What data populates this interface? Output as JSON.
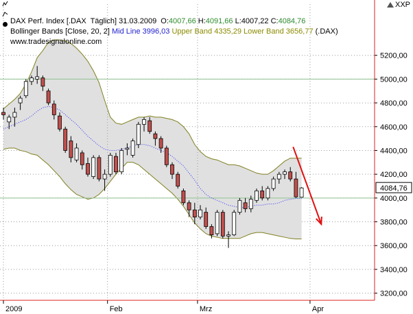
{
  "header": {
    "line1_prefix": "DAX Perf. Index [.DAX  Täglich] 31.03.2009  O:",
    "open": "4007,66",
    "high_label": " H:",
    "high": "4091,66",
    "low_label": " L:",
    "low": "4007,22",
    "close_label": " C:",
    "close": "4084,76",
    "line2_prefix": "Bollinger Bands [Close, 20, 2] ",
    "mid_label": "Mid Line 3996,03",
    "upper_label": " Upper Band 4335,29",
    "lower_label": " Lower Band 3656,77",
    "line2_suffix": " (.DAX)",
    "source": "www.tradesignalonline.com",
    "corner_label": "XXP"
  },
  "colors": {
    "up": "#ffffff",
    "down": "#c0504d",
    "band_fill": "#e0e0e0",
    "band_line": "#7f7f1f",
    "mid_line": "#2a2aff",
    "arrow": "#e01010",
    "open_color": "#2e8b2e",
    "high_color": "#2e8b2e",
    "mid_color": "#2222cc",
    "upper_color": "#8a8a00",
    "lower_color": "#8a8a00",
    "frame": "#e02020"
  },
  "chart_data": {
    "type": "candlestick",
    "y_ticks": [
      "5200,00",
      "5000,00",
      "4800,00",
      "4600,00",
      "4400,00",
      "4200,00",
      "4000,00",
      "3800,00",
      "3600,00",
      "3400,00",
      "3200,00"
    ],
    "y_tick_values": [
      5200,
      5000,
      4800,
      4600,
      4400,
      4200,
      4000,
      3800,
      3600,
      3400,
      3200
    ],
    "ylim": [
      3140,
      5400
    ],
    "x_labels": [
      "2009",
      "Feb",
      "Mrz",
      "Apr"
    ],
    "x_label_index": [
      0,
      18.5,
      34.5,
      54.5
    ],
    "last_value_label": "4084,76",
    "last_value": 4084.76,
    "candles": [
      {
        "o": 4720,
        "h": 4760,
        "l": 4660,
        "c": 4700
      },
      {
        "o": 4640,
        "h": 4700,
        "l": 4580,
        "c": 4680
      },
      {
        "o": 4680,
        "h": 4760,
        "l": 4600,
        "c": 4720
      },
      {
        "o": 4800,
        "h": 4860,
        "l": 4740,
        "c": 4840
      },
      {
        "o": 4860,
        "h": 5000,
        "l": 4840,
        "c": 4980
      },
      {
        "o": 4980,
        "h": 5030,
        "l": 4950,
        "c": 5010
      },
      {
        "o": 5000,
        "h": 5110,
        "l": 4960,
        "c": 5020
      },
      {
        "o": 5010,
        "h": 5030,
        "l": 4900,
        "c": 4940
      },
      {
        "o": 4900,
        "h": 4920,
        "l": 4780,
        "c": 4800
      },
      {
        "o": 4790,
        "h": 4820,
        "l": 4660,
        "c": 4700
      },
      {
        "o": 4690,
        "h": 4720,
        "l": 4560,
        "c": 4580
      },
      {
        "o": 4580,
        "h": 4600,
        "l": 4380,
        "c": 4400
      },
      {
        "o": 4480,
        "h": 4520,
        "l": 4300,
        "c": 4340
      },
      {
        "o": 4320,
        "h": 4460,
        "l": 4300,
        "c": 4420
      },
      {
        "o": 4380,
        "h": 4400,
        "l": 4240,
        "c": 4280
      },
      {
        "o": 4290,
        "h": 4340,
        "l": 4180,
        "c": 4200
      },
      {
        "o": 4180,
        "h": 4360,
        "l": 4160,
        "c": 4340
      },
      {
        "o": 4340,
        "h": 4360,
        "l": 4140,
        "c": 4160
      },
      {
        "o": 4160,
        "h": 4240,
        "l": 4060,
        "c": 4200
      },
      {
        "o": 4200,
        "h": 4380,
        "l": 4180,
        "c": 4360
      },
      {
        "o": 4350,
        "h": 4380,
        "l": 4200,
        "c": 4220
      },
      {
        "o": 4220,
        "h": 4420,
        "l": 4200,
        "c": 4400
      },
      {
        "o": 4410,
        "h": 4460,
        "l": 4360,
        "c": 4420
      },
      {
        "o": 4360,
        "h": 4500,
        "l": 4340,
        "c": 4480
      },
      {
        "o": 4450,
        "h": 4640,
        "l": 4420,
        "c": 4620
      },
      {
        "o": 4620,
        "h": 4680,
        "l": 4560,
        "c": 4660
      },
      {
        "o": 4650,
        "h": 4680,
        "l": 4540,
        "c": 4560
      },
      {
        "o": 4540,
        "h": 4560,
        "l": 4440,
        "c": 4500
      },
      {
        "o": 4500,
        "h": 4520,
        "l": 4380,
        "c": 4420
      },
      {
        "o": 4420,
        "h": 4440,
        "l": 4260,
        "c": 4280
      },
      {
        "o": 4280,
        "h": 4300,
        "l": 4160,
        "c": 4200
      },
      {
        "o": 4200,
        "h": 4220,
        "l": 4080,
        "c": 4100
      },
      {
        "o": 4060,
        "h": 4080,
        "l": 3940,
        "c": 3960
      },
      {
        "o": 3960,
        "h": 3980,
        "l": 3840,
        "c": 3900
      },
      {
        "o": 3900,
        "h": 3960,
        "l": 3780,
        "c": 3840
      },
      {
        "o": 3840,
        "h": 3940,
        "l": 3820,
        "c": 3900
      },
      {
        "o": 3880,
        "h": 3920,
        "l": 3740,
        "c": 3760
      },
      {
        "o": 3760,
        "h": 3780,
        "l": 3660,
        "c": 3690
      },
      {
        "o": 3700,
        "h": 3900,
        "l": 3680,
        "c": 3880
      },
      {
        "o": 3880,
        "h": 3900,
        "l": 3660,
        "c": 3680
      },
      {
        "o": 3680,
        "h": 3720,
        "l": 3580,
        "c": 3690
      },
      {
        "o": 3690,
        "h": 3900,
        "l": 3680,
        "c": 3880
      },
      {
        "o": 3880,
        "h": 4000,
        "l": 3860,
        "c": 3980
      },
      {
        "o": 3960,
        "h": 4000,
        "l": 3880,
        "c": 3910
      },
      {
        "o": 3910,
        "h": 4020,
        "l": 3880,
        "c": 3990
      },
      {
        "o": 3980,
        "h": 4080,
        "l": 3960,
        "c": 4060
      },
      {
        "o": 4060,
        "h": 4100,
        "l": 3980,
        "c": 4000
      },
      {
        "o": 4000,
        "h": 4100,
        "l": 3980,
        "c": 4080
      },
      {
        "o": 4080,
        "h": 4180,
        "l": 4060,
        "c": 4160
      },
      {
        "o": 4160,
        "h": 4220,
        "l": 4120,
        "c": 4200
      },
      {
        "o": 4200,
        "h": 4240,
        "l": 4160,
        "c": 4220
      },
      {
        "o": 4220,
        "h": 4260,
        "l": 4140,
        "c": 4160
      },
      {
        "o": 4160,
        "h": 4220,
        "l": 4000,
        "c": 4010
      },
      {
        "o": 4007.66,
        "h": 4091.66,
        "l": 4007.22,
        "c": 4084.76
      }
    ],
    "upper_band": [
      4750,
      4790,
      4830,
      4880,
      4960,
      5060,
      5180,
      5240,
      5310,
      5330,
      5330,
      5320,
      5300,
      5260,
      5210,
      5150,
      5070,
      4970,
      4820,
      4680,
      4630,
      4620,
      4640,
      4660,
      4680,
      4680,
      4690,
      4680,
      4680,
      4670,
      4660,
      4640,
      4600,
      4540,
      4450,
      4390,
      4350,
      4330,
      4320,
      4300,
      4280,
      4280,
      4270,
      4250,
      4230,
      4210,
      4200,
      4200,
      4230,
      4270,
      4310,
      4335,
      4335,
      4335
    ],
    "lower_band": [
      4410,
      4420,
      4420,
      4400,
      4390,
      4370,
      4360,
      4320,
      4280,
      4230,
      4180,
      4120,
      4070,
      4030,
      4010,
      3990,
      4000,
      4030,
      4080,
      4140,
      4200,
      4250,
      4300,
      4300,
      4280,
      4240,
      4200,
      4160,
      4120,
      4080,
      4040,
      3990,
      3930,
      3860,
      3790,
      3740,
      3700,
      3680,
      3670,
      3660,
      3660,
      3660,
      3660,
      3680,
      3700,
      3710,
      3710,
      3700,
      3690,
      3680,
      3670,
      3660,
      3656,
      3656
    ],
    "mid_line": [
      4580,
      4600,
      4620,
      4640,
      4660,
      4690,
      4730,
      4760,
      4770,
      4760,
      4740,
      4700,
      4660,
      4620,
      4570,
      4520,
      4480,
      4440,
      4410,
      4400,
      4400,
      4410,
      4420,
      4440,
      4450,
      4450,
      4440,
      4420,
      4400,
      4380,
      4350,
      4310,
      4270,
      4210,
      4150,
      4080,
      4030,
      4000,
      3980,
      3960,
      3940,
      3930,
      3920,
      3920,
      3930,
      3940,
      3940,
      3950,
      3950,
      3960,
      3980,
      3990,
      3996,
      3996
    ],
    "trend_arrow": {
      "from": [
        51.5,
        4430
      ],
      "to": [
        56.5,
        3780
      ]
    }
  }
}
